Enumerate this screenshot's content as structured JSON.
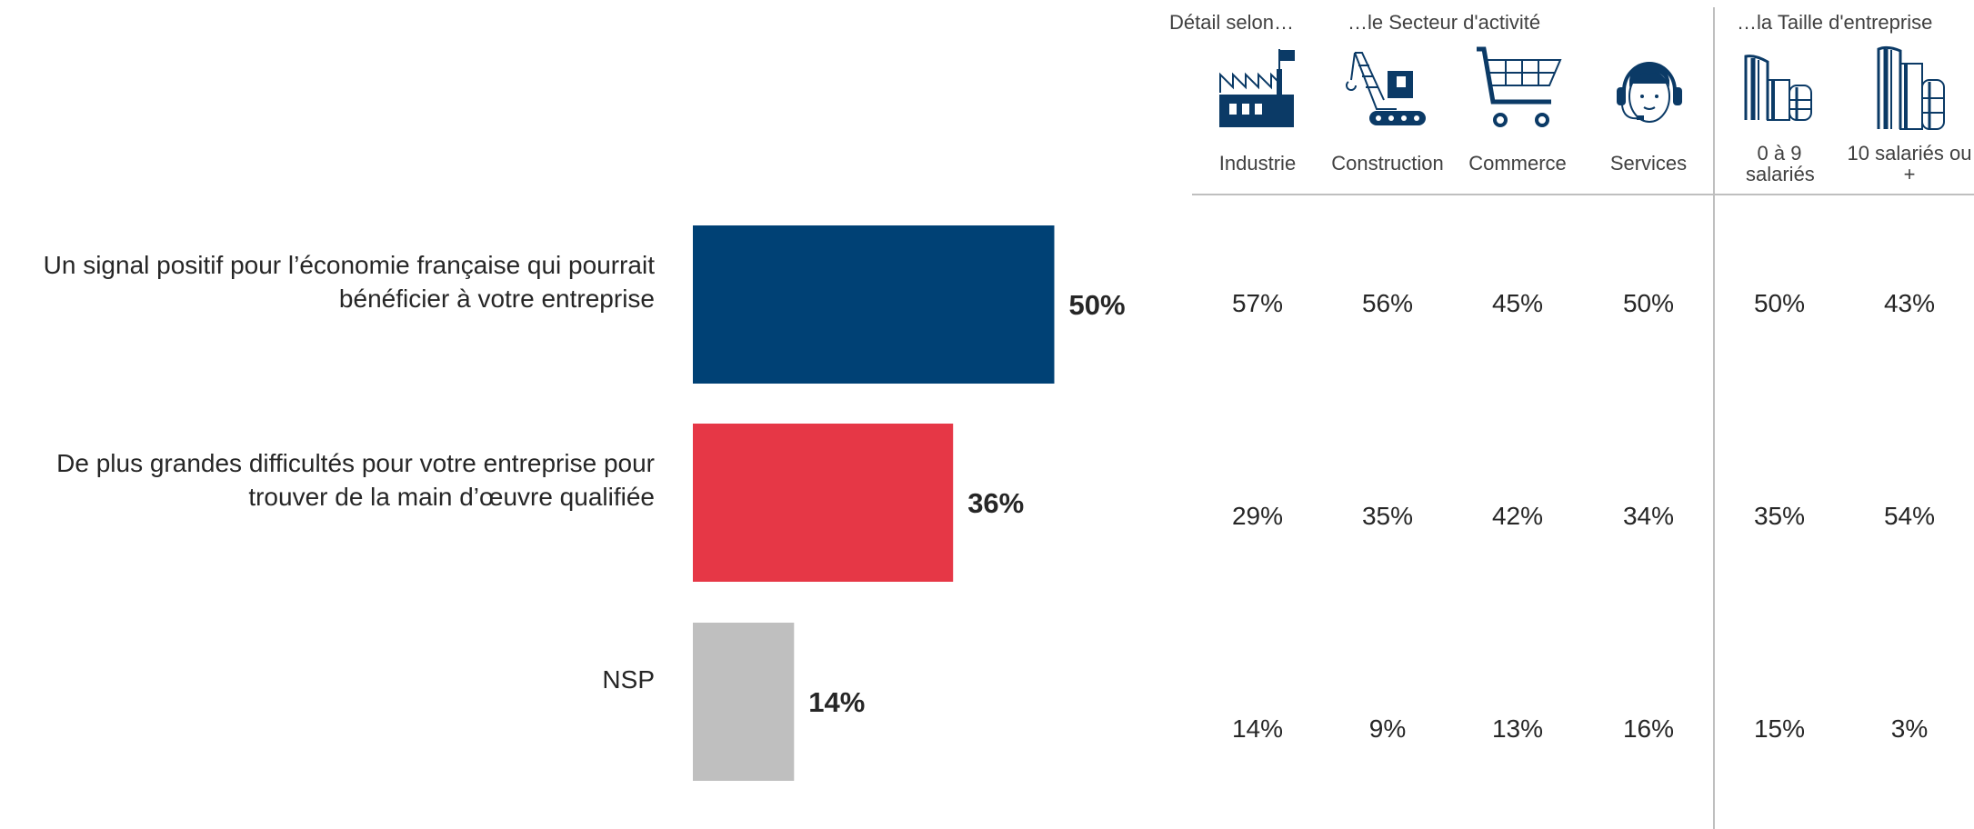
{
  "chart_data": {
    "type": "bar",
    "orientation": "horizontal",
    "categories": [
      "Un signal positif pour l’économie française qui pourrait bénéficier à votre entreprise",
      "De plus grandes difficultés pour votre entreprise pour trouver de la main d’œuvre qualifiée",
      "NSP"
    ],
    "values": [
      50,
      36,
      14
    ],
    "value_labels": [
      "50%",
      "36%",
      "14%"
    ],
    "colors": [
      "#004175",
      "#e63746",
      "#bfbfbf"
    ],
    "xlim": [
      0,
      100
    ],
    "grid": false,
    "legend": "none"
  },
  "breakdown": {
    "intro": "Détail selon…",
    "groups": [
      {
        "label": "…le Secteur d'activité"
      },
      {
        "label": "…la Taille d'entreprise"
      }
    ],
    "columns": [
      {
        "label": "Industrie",
        "icon": "factory-icon"
      },
      {
        "label": "Construction",
        "icon": "crane-icon"
      },
      {
        "label": "Commerce",
        "icon": "shopping-cart-icon"
      },
      {
        "label": "Services",
        "icon": "headset-operator-icon"
      },
      {
        "label": "0 à 9 salariés",
        "icon": "small-building-icon"
      },
      {
        "label": "10 salariés ou +",
        "icon": "large-building-icon"
      }
    ],
    "rows": [
      [
        "57%",
        "56%",
        "45%",
        "50%",
        "50%",
        "43%"
      ],
      [
        "29%",
        "35%",
        "42%",
        "34%",
        "35%",
        "54%"
      ],
      [
        "14%",
        "9%",
        "13%",
        "16%",
        "15%",
        "3%"
      ]
    ]
  },
  "colors": {
    "icon": "#0b3a66",
    "divider": "#bfbfbf"
  }
}
